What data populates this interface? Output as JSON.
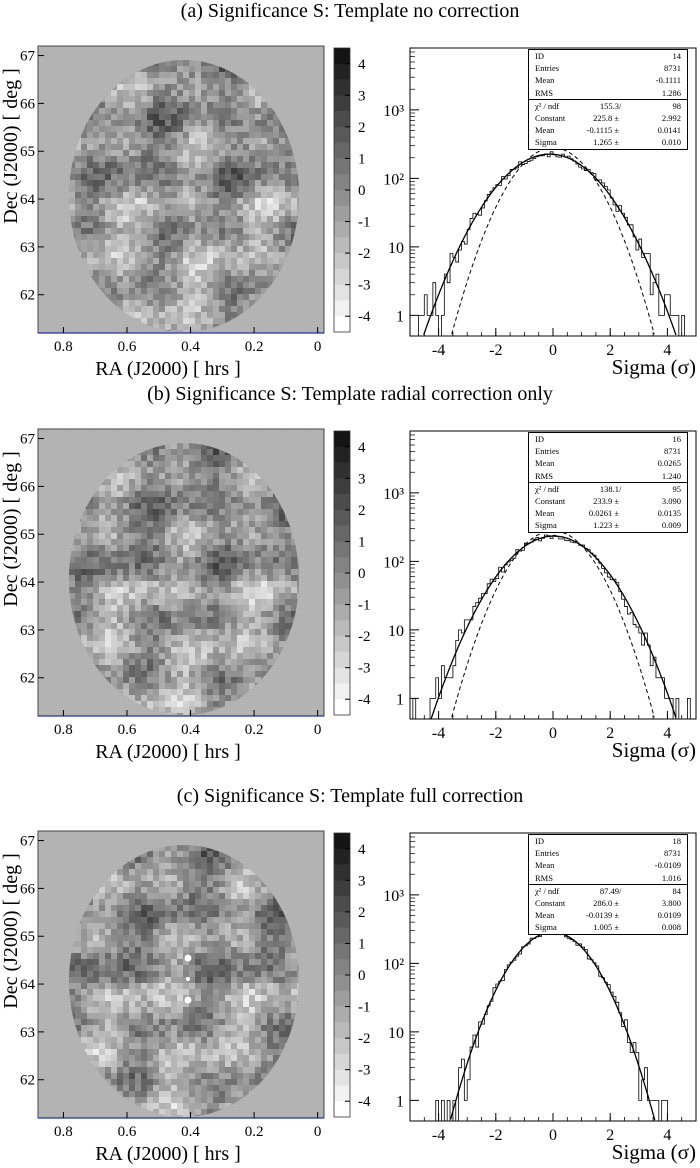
{
  "panels": [
    {
      "title": "(a) Significance S: Template no correction",
      "map": {
        "ylabel": "Dec (J2000) [ deg ]",
        "xlabel": "RA (J2000) [ hrs ]",
        "xticks": [
          "0.8",
          "0.6",
          "0.4",
          "0.2",
          "0"
        ],
        "yticks": [
          "67",
          "66",
          "65",
          "64",
          "63",
          "62"
        ]
      },
      "colorbar": {
        "ticks": [
          "4",
          "3",
          "2",
          "1",
          "0",
          "-1",
          "-2",
          "-3",
          "-4"
        ]
      },
      "hist": {
        "stats": {
          "id_label": "ID",
          "id": "14",
          "entries_label": "Entries",
          "entries": "8731",
          "mean_label": "Mean",
          "mean": "-0.1111",
          "rms_label": "RMS",
          "rms": "1.286",
          "chi_label": "χ² / ndf",
          "chi": "155.3",
          "ndf": "98",
          "const_label": "Constant",
          "const": "225.8 ±",
          "const_err": "2.992",
          "fmean_label": "Mean",
          "fmean": "-0.1115 ±",
          "fmean_err": "0.0141",
          "sigma_label": "Sigma",
          "sigma": "1.265 ±",
          "sigma_err": "0.010"
        },
        "xticks": [
          "-4",
          "-2",
          "0",
          "2",
          "4"
        ],
        "yticks": [
          "10³",
          "10²",
          "10",
          "1"
        ],
        "xlabel": "Sigma (σ)"
      }
    },
    {
      "title": "(b) Significance S: Template radial correction only",
      "map": {
        "ylabel": "Dec (J2000) [ deg ]",
        "xlabel": "RA (J2000) [ hrs ]",
        "xticks": [
          "0.8",
          "0.6",
          "0.4",
          "0.2",
          "0"
        ],
        "yticks": [
          "67",
          "66",
          "65",
          "64",
          "63",
          "62"
        ]
      },
      "colorbar": {
        "ticks": [
          "4",
          "3",
          "2",
          "1",
          "0",
          "-1",
          "-2",
          "-3",
          "-4"
        ]
      },
      "hist": {
        "stats": {
          "id_label": "ID",
          "id": "16",
          "entries_label": "Entries",
          "entries": "8731",
          "mean_label": "Mean",
          "mean": "0.0265",
          "rms_label": "RMS",
          "rms": "1.240",
          "chi_label": "χ² / ndf",
          "chi": "138.1",
          "ndf": "95",
          "const_label": "Constant",
          "const": "233.9 ±",
          "const_err": "3.090",
          "fmean_label": "Mean",
          "fmean": "0.0261 ±",
          "fmean_err": "0.0135",
          "sigma_label": "Sigma",
          "sigma": "1.223 ±",
          "sigma_err": "0.009"
        },
        "xticks": [
          "-4",
          "-2",
          "0",
          "2",
          "4"
        ],
        "yticks": [
          "10³",
          "10²",
          "10",
          "1"
        ],
        "xlabel": "Sigma (σ)"
      }
    },
    {
      "title": "(c) Significance S: Template full correction",
      "map": {
        "ylabel": "Dec (J2000) [ deg ]",
        "xlabel": "RA (J2000) [ hrs ]",
        "xticks": [
          "0.8",
          "0.6",
          "0.4",
          "0.2",
          "0"
        ],
        "yticks": [
          "67",
          "66",
          "65",
          "64",
          "63",
          "62"
        ]
      },
      "colorbar": {
        "ticks": [
          "4",
          "3",
          "2",
          "1",
          "0",
          "-1",
          "-2",
          "-3",
          "-4"
        ]
      },
      "hist": {
        "stats": {
          "id_label": "ID",
          "id": "18",
          "entries_label": "Entries",
          "entries": "8731",
          "mean_label": "Mean",
          "mean": "-0.0109",
          "rms_label": "RMS",
          "rms": "1.016",
          "chi_label": "χ² / ndf",
          "chi": "87.49",
          "ndf": "84",
          "const_label": "Constant",
          "const": "286.0 ±",
          "const_err": "3.800",
          "fmean_label": "Mean",
          "fmean": "-0.0139 ±",
          "fmean_err": "0.0109",
          "sigma_label": "Sigma",
          "sigma": "1.005 ±",
          "sigma_err": "0.008"
        },
        "xticks": [
          "-4",
          "-2",
          "0",
          "2",
          "4"
        ],
        "yticks": [
          "10³",
          "10²",
          "10",
          "1"
        ],
        "xlabel": "Sigma (σ)"
      }
    }
  ],
  "chart_data": [
    {
      "type": "heatmap",
      "title": "(a) Significance S: Template no correction",
      "xlabel": "RA (J2000) [ hrs ]",
      "ylabel": "Dec (J2000) [ deg ]",
      "xlim": [
        0.88,
        -0.02
      ],
      "ylim": [
        61.2,
        67.2
      ],
      "zlim": [
        -4.5,
        4.5
      ]
    },
    {
      "type": "histogram",
      "title": "(a) Significance S: Template no correction",
      "xlabel": "Sigma (σ)",
      "xlim": [
        -5,
        5
      ],
      "ylim": [
        0.5,
        8000
      ],
      "yscale": "log",
      "entries": 8731,
      "mean": -0.1111,
      "rms": 1.286,
      "fit": {
        "chi2": 155.3,
        "ndf": 98,
        "constant": 225.8,
        "constant_err": 2.992,
        "mean": -0.1115,
        "mean_err": 0.0141,
        "sigma": 1.265,
        "sigma_err": 0.01
      },
      "reference_gaussian": {
        "constant": 280,
        "mean": 0,
        "sigma": 1.0,
        "style": "dashed"
      }
    },
    {
      "type": "heatmap",
      "title": "(b) Significance S: Template radial correction only",
      "xlabel": "RA (J2000) [ hrs ]",
      "ylabel": "Dec (J2000) [ deg ]",
      "xlim": [
        0.88,
        -0.02
      ],
      "ylim": [
        61.2,
        67.2
      ],
      "zlim": [
        -4.5,
        4.5
      ]
    },
    {
      "type": "histogram",
      "title": "(b) Significance S: Template radial correction only",
      "xlabel": "Sigma (σ)",
      "xlim": [
        -5,
        5
      ],
      "ylim": [
        0.5,
        8000
      ],
      "yscale": "log",
      "entries": 8731,
      "mean": 0.0265,
      "rms": 1.24,
      "fit": {
        "chi2": 138.1,
        "ndf": 95,
        "constant": 233.9,
        "constant_err": 3.09,
        "mean": 0.0261,
        "mean_err": 0.0135,
        "sigma": 1.223,
        "sigma_err": 0.009
      },
      "reference_gaussian": {
        "constant": 280,
        "mean": 0,
        "sigma": 1.0,
        "style": "dashed"
      }
    },
    {
      "type": "heatmap",
      "title": "(c) Significance S: Template full correction",
      "xlabel": "RA (J2000) [ hrs ]",
      "ylabel": "Dec (J2000) [ deg ]",
      "xlim": [
        0.88,
        -0.02
      ],
      "ylim": [
        61.2,
        67.2
      ],
      "zlim": [
        -4.5,
        4.5
      ]
    },
    {
      "type": "histogram",
      "title": "(c) Significance S: Template full correction",
      "xlabel": "Sigma (σ)",
      "xlim": [
        -5,
        5
      ],
      "ylim": [
        0.5,
        8000
      ],
      "yscale": "log",
      "entries": 8731,
      "mean": -0.0109,
      "rms": 1.016,
      "fit": {
        "chi2": 87.49,
        "ndf": 84,
        "constant": 286.0,
        "constant_err": 3.8,
        "mean": -0.0139,
        "mean_err": 0.0109,
        "sigma": 1.005,
        "sigma_err": 0.008
      },
      "reference_gaussian": {
        "constant": 280,
        "mean": 0,
        "sigma": 1.0,
        "style": "dashed"
      }
    }
  ]
}
